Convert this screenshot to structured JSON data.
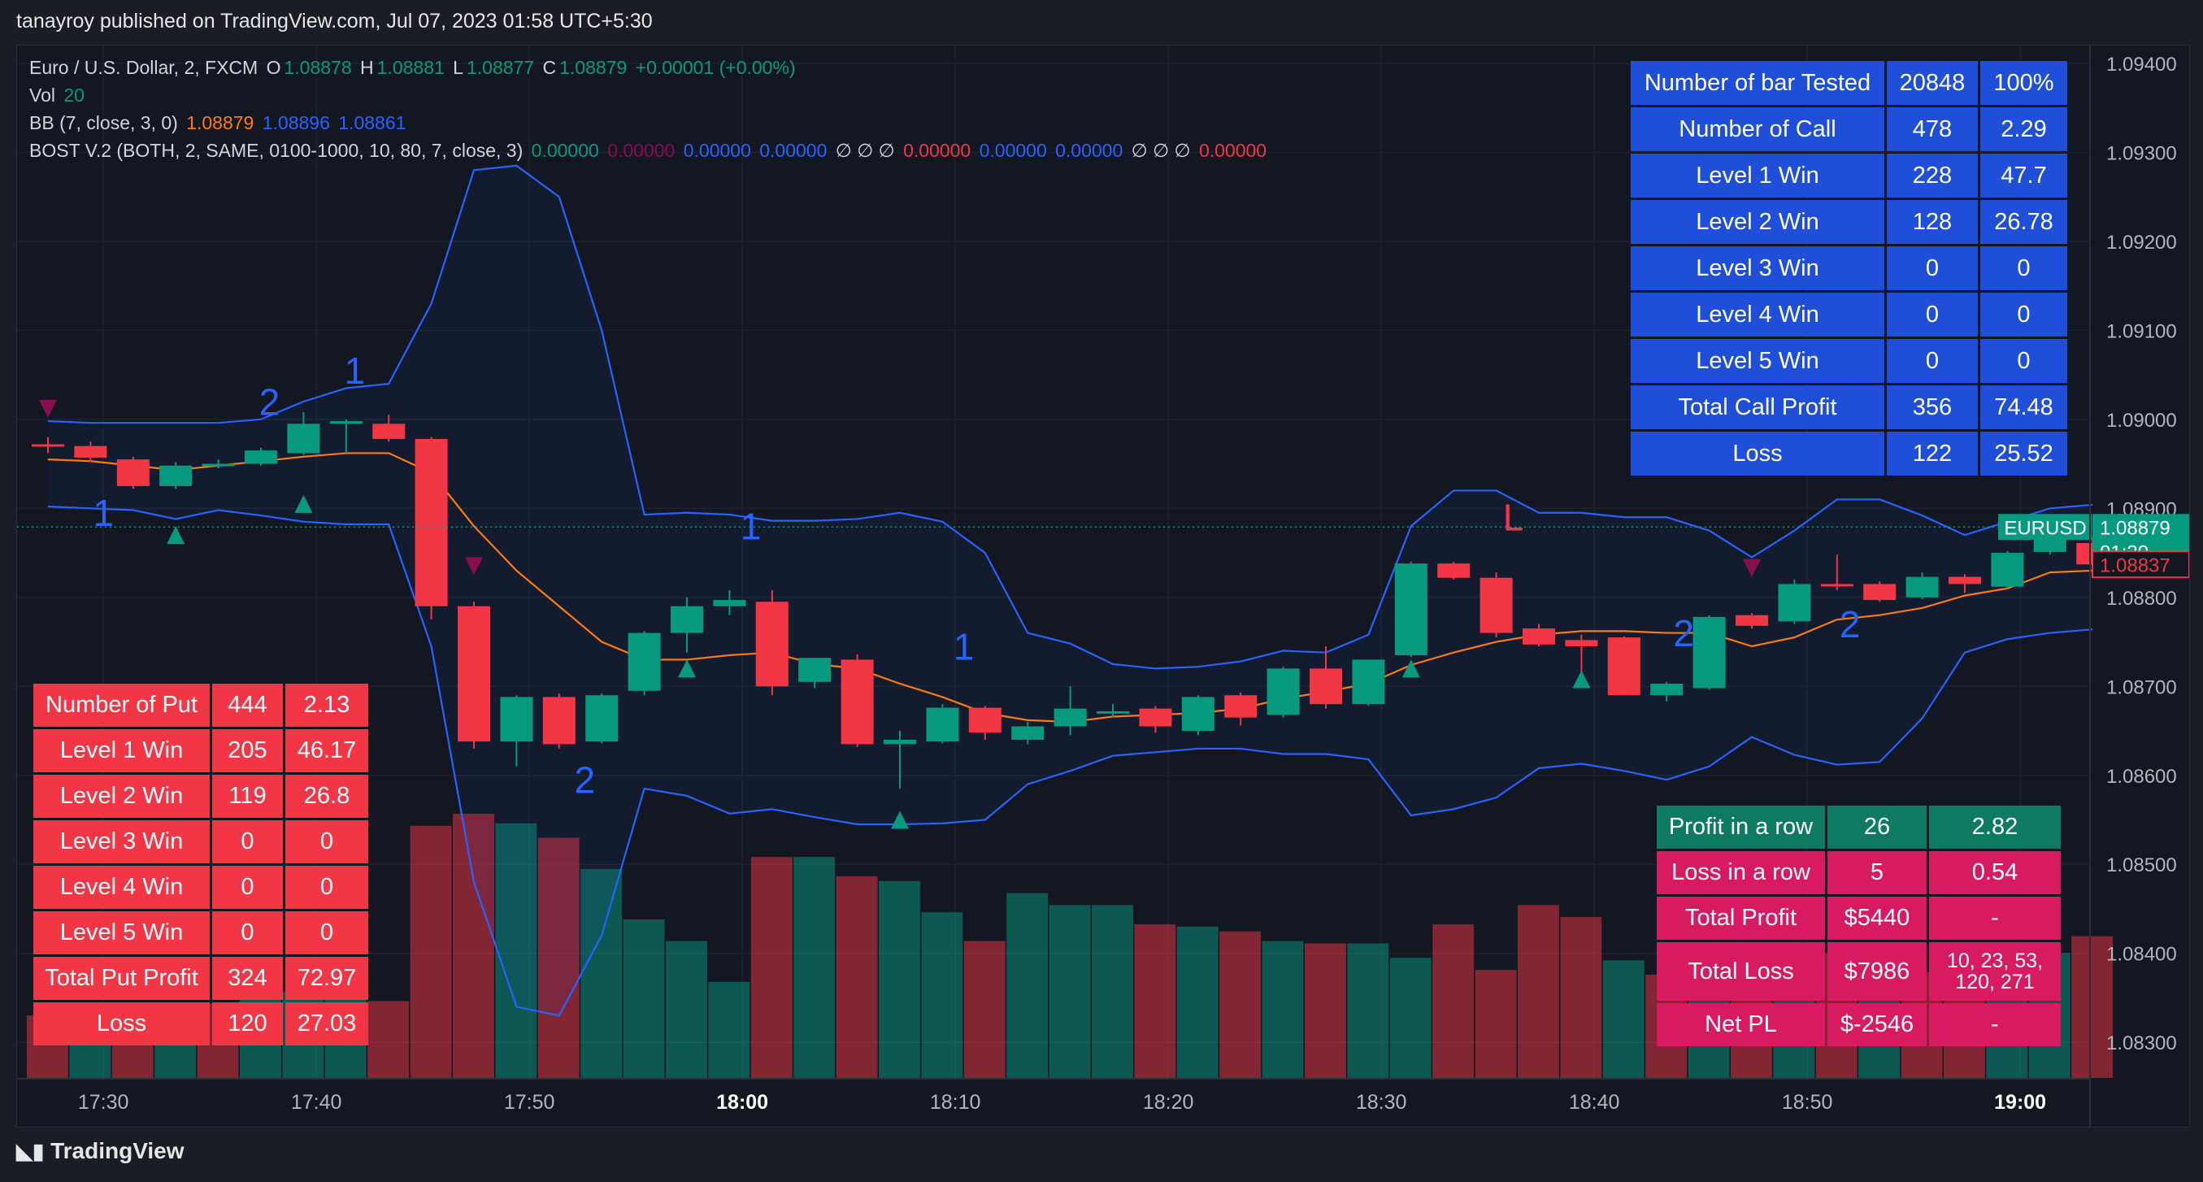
{
  "header": {
    "published": "tanayroy published on TradingView.com, Jul 07, 2023 01:58 UTC+5:30"
  },
  "legend": {
    "symbol": "Euro / U.S. Dollar, 2, FXCM",
    "o_label": "O",
    "o": "1.08878",
    "h_label": "H",
    "h": "1.08881",
    "l_label": "L",
    "l": "1.08877",
    "c_label": "C",
    "c": "1.08879",
    "change": "+0.00001 (+0.00%)",
    "vol_label": "Vol",
    "vol": "20",
    "bb_label": "BB (7, close, 3, 0)",
    "bb1": "1.08879",
    "bb2": "1.08896",
    "bb3": "1.08861",
    "bost_label": "BOST V.2 (BOTH, 2, SAME, 0100-1000, 10, 80, 7, close, 3)",
    "bost_v1": "0.00000",
    "bost_v2": "0.00000",
    "bost_v3": "0.00000",
    "bost_v4": "0.00000",
    "bost_sym1": "∅ ∅ ∅",
    "bost_v5": "0.00000",
    "bost_v6": "0.00000",
    "bost_v7": "0.00000",
    "bost_sym2": "∅ ∅ ∅",
    "bost_v8": "0.00000"
  },
  "colors": {
    "up": "#089981",
    "down": "#f23645",
    "bb_basis": "#ff7b0f",
    "bb_band": "#2962ff",
    "call_table": "#1f4ed8",
    "put_table": "#f23645",
    "profit_row": "#0d7a61",
    "loss_row": "#d81b60"
  },
  "call_table": [
    [
      "Number of bar Tested",
      "20848",
      "100%"
    ],
    [
      "Number of Call",
      "478",
      "2.29"
    ],
    [
      "Level 1 Win",
      "228",
      "47.7"
    ],
    [
      "Level 2 Win",
      "128",
      "26.78"
    ],
    [
      "Level 3 Win",
      "0",
      "0"
    ],
    [
      "Level 4 Win",
      "0",
      "0"
    ],
    [
      "Level 5 Win",
      "0",
      "0"
    ],
    [
      "Total Call Profit",
      "356",
      "74.48"
    ],
    [
      "Loss",
      "122",
      "25.52"
    ]
  ],
  "put_table": [
    [
      "Number of Put",
      "444",
      "2.13"
    ],
    [
      "Level 1 Win",
      "205",
      "46.17"
    ],
    [
      "Level 2 Win",
      "119",
      "26.8"
    ],
    [
      "Level 3 Win",
      "0",
      "0"
    ],
    [
      "Level 4 Win",
      "0",
      "0"
    ],
    [
      "Level 5 Win",
      "0",
      "0"
    ],
    [
      "Total Put Profit",
      "324",
      "72.97"
    ],
    [
      "Loss",
      "120",
      "27.03"
    ]
  ],
  "summary_table": [
    [
      "Profit in a row",
      "26",
      "2.82"
    ],
    [
      "Loss in a row",
      "5",
      "0.54"
    ],
    [
      "Total Profit",
      "$5440",
      "-"
    ],
    [
      "Total Loss",
      "$7986",
      "10, 23, 53, 120, 271"
    ],
    [
      "Net PL",
      "$-2546",
      "-"
    ]
  ],
  "price_tags": {
    "symbol": "EURUSD",
    "last": "1.08879",
    "countdown": "01:30",
    "other": "1.08837"
  },
  "branding": {
    "logo_text": "TradingView"
  },
  "chart_data": {
    "type": "candlestick",
    "y_axis": {
      "ticks": [
        "1.09400",
        "1.09300",
        "1.09200",
        "1.09100",
        "1.09000",
        "1.08900",
        "1.08800",
        "1.08700",
        "1.08600",
        "1.08500",
        "1.08400",
        "1.08300"
      ],
      "ylim": [
        1.0826,
        1.0942
      ]
    },
    "x_axis": {
      "ticks": [
        "17:30",
        "17:40",
        "17:50",
        "18:00",
        "18:10",
        "18:20",
        "18:30",
        "18:40",
        "18:50",
        "19:00"
      ],
      "bold_ticks": [
        "18:00",
        "19:00"
      ]
    },
    "candles": [
      [
        1.08972,
        1.0898,
        1.08962,
        1.0897
      ],
      [
        1.0897,
        1.08975,
        1.08952,
        1.08957
      ],
      [
        1.08955,
        1.08958,
        1.08922,
        1.08925
      ],
      [
        1.08925,
        1.08952,
        1.08922,
        1.08948
      ],
      [
        1.08948,
        1.08955,
        1.08945,
        1.0895
      ],
      [
        1.0895,
        1.08968,
        1.08948,
        1.08965
      ],
      [
        1.08962,
        1.09008,
        1.0896,
        1.08995
      ],
      [
        1.08995,
        1.09,
        1.08962,
        1.08998
      ],
      [
        1.08995,
        1.09005,
        1.08975,
        1.08978
      ],
      [
        1.08978,
        1.0898,
        1.08775,
        1.0879
      ],
      [
        1.0879,
        1.08795,
        1.0863,
        1.08638
      ],
      [
        1.08638,
        1.0869,
        1.0861,
        1.08688
      ],
      [
        1.08688,
        1.08692,
        1.0863,
        1.08635
      ],
      [
        1.08638,
        1.08692,
        1.08636,
        1.0869
      ],
      [
        1.08695,
        1.08762,
        1.0869,
        1.0876
      ],
      [
        1.0876,
        1.088,
        1.08738,
        1.0879
      ],
      [
        1.0879,
        1.08808,
        1.0878,
        1.08797
      ],
      [
        1.08795,
        1.08808,
        1.0869,
        1.087
      ],
      [
        1.08705,
        1.0873,
        1.08698,
        1.08732
      ],
      [
        1.0873,
        1.08736,
        1.08632,
        1.08635
      ],
      [
        1.08635,
        1.0865,
        1.08585,
        1.0864
      ],
      [
        1.08638,
        1.0868,
        1.08636,
        1.08676
      ],
      [
        1.08676,
        1.08678,
        1.0864,
        1.08648
      ],
      [
        1.0864,
        1.0866,
        1.08635,
        1.08655
      ],
      [
        1.08655,
        1.087,
        1.08645,
        1.08675
      ],
      [
        1.0867,
        1.0868,
        1.08665,
        1.08672
      ],
      [
        1.08675,
        1.08678,
        1.08648,
        1.08655
      ],
      [
        1.0865,
        1.0869,
        1.08645,
        1.08688
      ],
      [
        1.0869,
        1.08693,
        1.08656,
        1.08665
      ],
      [
        1.08668,
        1.08722,
        1.08665,
        1.0872
      ],
      [
        1.0872,
        1.08745,
        1.08675,
        1.0868
      ],
      [
        1.0868,
        1.08722,
        1.08678,
        1.0873
      ],
      [
        1.08735,
        1.0884,
        1.08733,
        1.08838
      ],
      [
        1.08838,
        1.0884,
        1.0882,
        1.08822
      ],
      [
        1.08822,
        1.08828,
        1.08755,
        1.0876
      ],
      [
        1.08765,
        1.0877,
        1.08745,
        1.08747
      ],
      [
        1.08752,
        1.08758,
        1.08715,
        1.08745
      ],
      [
        1.08755,
        1.08756,
        1.0869,
        1.0869
      ],
      [
        1.0869,
        1.08705,
        1.08683,
        1.08703
      ],
      [
        1.08698,
        1.0878,
        1.08696,
        1.08778
      ],
      [
        1.0878,
        1.08782,
        1.08765,
        1.08768
      ],
      [
        1.08773,
        1.0882,
        1.0877,
        1.08815
      ],
      [
        1.08815,
        1.08848,
        1.08808,
        1.08813
      ],
      [
        1.08815,
        1.08818,
        1.08795,
        1.08797
      ],
      [
        1.088,
        1.08828,
        1.08798,
        1.08823
      ],
      [
        1.08823,
        1.08826,
        1.08805,
        1.08815
      ],
      [
        1.08812,
        1.08852,
        1.0881,
        1.0885
      ],
      [
        1.08851,
        1.08872,
        1.08848,
        1.08866
      ],
      [
        1.08861,
        1.08868,
        1.0883,
        1.08837
      ]
    ],
    "bb_upper": [
      1.08998,
      1.08996,
      1.08996,
      1.08996,
      1.08996,
      1.09,
      1.0902,
      1.09035,
      1.0904,
      1.0913,
      1.0928,
      1.09285,
      1.0925,
      1.091,
      1.08893,
      1.08895,
      1.08893,
      1.08886,
      1.08886,
      1.08888,
      1.08895,
      1.08885,
      1.0885,
      1.0876,
      1.08748,
      1.08725,
      1.0872,
      1.08722,
      1.08728,
      1.0874,
      1.08738,
      1.08758,
      1.0888,
      1.0892,
      1.0892,
      1.08895,
      1.08895,
      1.0889,
      1.0889,
      1.08875,
      1.08845,
      1.08875,
      1.0891,
      1.0891,
      1.08892,
      1.0887,
      1.08885,
      1.089,
      1.08904
    ],
    "bb_basis": [
      1.08955,
      1.08953,
      1.08948,
      1.08943,
      1.08948,
      1.08953,
      1.08958,
      1.08962,
      1.08962,
      1.0894,
      1.0888,
      1.0883,
      1.0879,
      1.0875,
      1.0873,
      1.0873,
      1.08735,
      1.08738,
      1.08725,
      1.0872,
      1.08703,
      1.08688,
      1.0867,
      1.08662,
      1.0866,
      1.08666,
      1.08668,
      1.0867,
      1.08675,
      1.08686,
      1.08694,
      1.08703,
      1.08724,
      1.08738,
      1.0875,
      1.08758,
      1.08762,
      1.08762,
      1.0876,
      1.0876,
      1.08745,
      1.08755,
      1.08775,
      1.0878,
      1.08788,
      1.08802,
      1.0881,
      1.08828,
      1.0883
    ],
    "bb_lower": [
      1.08902,
      1.089,
      1.08898,
      1.08888,
      1.08898,
      1.08892,
      1.08885,
      1.08882,
      1.08882,
      1.08745,
      1.0848,
      1.0834,
      1.0833,
      1.0842,
      1.08585,
      1.08577,
      1.08557,
      1.08562,
      1.08553,
      1.08545,
      1.08545,
      1.08546,
      1.0855,
      1.0859,
      1.08605,
      1.08622,
      1.08626,
      1.0863,
      1.0863,
      1.08624,
      1.08624,
      1.08618,
      1.08555,
      1.08562,
      1.08575,
      1.08608,
      1.08613,
      1.08605,
      1.08595,
      1.0861,
      1.08643,
      1.08623,
      1.08612,
      1.08615,
      1.08664,
      1.08738,
      1.08753,
      1.0876,
      1.08764
    ],
    "volume": [
      26,
      26,
      30,
      30,
      31,
      36,
      36,
      36,
      32,
      105,
      110,
      106,
      100,
      87,
      66,
      57,
      40,
      92,
      92,
      84,
      82,
      69,
      57,
      77,
      72,
      72,
      64,
      63,
      61,
      57,
      56,
      56,
      50,
      64,
      45,
      72,
      67,
      49,
      43,
      36,
      48,
      39,
      52,
      43,
      44,
      49,
      46,
      52,
      59
    ],
    "volume_color": [
      "down",
      "up",
      "down",
      "up",
      "down",
      "up",
      "up",
      "up",
      "down",
      "down",
      "down",
      "up",
      "down",
      "up",
      "up",
      "up",
      "up",
      "down",
      "up",
      "down",
      "up",
      "up",
      "down",
      "up",
      "up",
      "up",
      "down",
      "up",
      "down",
      "up",
      "down",
      "up",
      "up",
      "down",
      "down",
      "down",
      "down",
      "up",
      "down",
      "up",
      "down",
      "up",
      "down",
      "up",
      "down",
      "down",
      "up",
      "up",
      "down"
    ],
    "markers": [
      {
        "i": 0,
        "kind": "tri-down",
        "price": 1.09012
      },
      {
        "i": 3,
        "kind": "tri-up",
        "price": 1.0887
      },
      {
        "i": 6,
        "kind": "tri-up",
        "price": 1.08905
      },
      {
        "i": 10,
        "kind": "tri-down",
        "price": 1.08835
      },
      {
        "i": 15,
        "kind": "tri-up",
        "price": 1.0872
      },
      {
        "i": 20,
        "kind": "tri-up",
        "price": 1.0855
      },
      {
        "i": 32,
        "kind": "tri-up",
        "price": 1.0872
      },
      {
        "i": 36,
        "kind": "tri-up",
        "price": 1.08708
      },
      {
        "i": 40,
        "kind": "tri-down",
        "price": 1.08833
      }
    ],
    "labels": [
      {
        "i": 1.3,
        "text": "1",
        "price": 1.0888,
        "color": "bb_band"
      },
      {
        "i": 5.2,
        "text": "2",
        "price": 1.09005,
        "color": "bb_band"
      },
      {
        "i": 7.2,
        "text": "1",
        "price": 1.0904,
        "color": "bb_band"
      },
      {
        "i": 12.6,
        "text": "2",
        "price": 1.0858,
        "color": "bb_band"
      },
      {
        "i": 16.5,
        "text": "1",
        "price": 1.08865,
        "color": "bb_band"
      },
      {
        "i": 21.5,
        "text": "1",
        "price": 1.0873,
        "color": "bb_band"
      },
      {
        "i": 34.4,
        "text": "L",
        "price": 1.08875,
        "color": "down"
      },
      {
        "i": 38.4,
        "text": "2",
        "price": 1.08745,
        "color": "bb_band"
      },
      {
        "i": 42.3,
        "text": "2",
        "price": 1.08755,
        "color": "bb_band"
      }
    ]
  }
}
